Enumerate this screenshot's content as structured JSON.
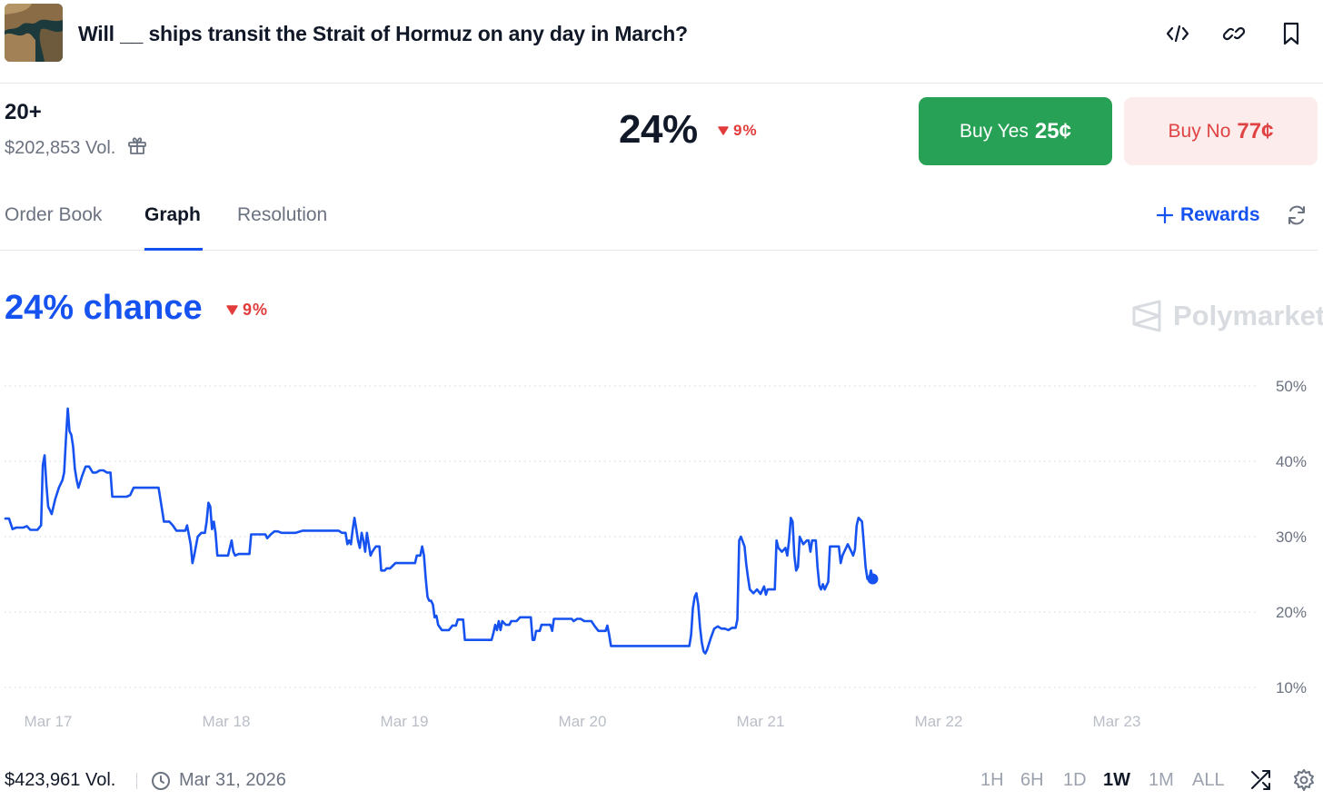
{
  "header": {
    "title": "Will __ ships transit the Strait of Hormuz on any day in March?"
  },
  "market": {
    "outcome": "20+",
    "volume": "$202,853 Vol.",
    "probability": "24%",
    "change": "9%",
    "buy_yes_label": "Buy Yes",
    "buy_yes_price": "25¢",
    "buy_no_label": "Buy No",
    "buy_no_price": "77¢"
  },
  "tabs": [
    "Order Book",
    "Graph",
    "Resolution"
  ],
  "active_tab": "Graph",
  "rewards_label": "Rewards",
  "chart_header": {
    "chance": "24% chance",
    "change": "9%",
    "brand": "Polymarket"
  },
  "chart_data": {
    "type": "line",
    "xlabel": "",
    "ylabel": "",
    "x_ticks": [
      "Mar 17",
      "Mar 18",
      "Mar 19",
      "Mar 20",
      "Mar 21",
      "Mar 22",
      "Mar 23"
    ],
    "y_ticks": [
      "10%",
      "20%",
      "30%",
      "40%",
      "50%"
    ],
    "ylim": [
      10,
      50
    ],
    "xlim": [
      16.76,
      23.89
    ],
    "grid": true,
    "legend": "none",
    "series": [
      {
        "color": "#1652f0",
        "points": [
          [
            16.76,
            32.4
          ],
          [
            16.78,
            32.4
          ],
          [
            16.8,
            31.0
          ],
          [
            16.82,
            31.2
          ],
          [
            16.86,
            31.2
          ],
          [
            16.88,
            31.4
          ],
          [
            16.9,
            30.9
          ],
          [
            16.92,
            30.9
          ],
          [
            16.94,
            30.9
          ],
          [
            16.96,
            31.5
          ],
          [
            16.97,
            39.5
          ],
          [
            16.98,
            40.8
          ],
          [
            16.99,
            37.0
          ],
          [
            17.0,
            34.0
          ],
          [
            17.02,
            33.0
          ],
          [
            17.04,
            35.0
          ],
          [
            17.06,
            36.5
          ],
          [
            17.08,
            37.5
          ],
          [
            17.09,
            38.5
          ],
          [
            17.1,
            43.0
          ],
          [
            17.11,
            47.0
          ],
          [
            17.12,
            44.0
          ],
          [
            17.13,
            43.5
          ],
          [
            17.14,
            42.0
          ],
          [
            17.15,
            39.0
          ],
          [
            17.16,
            37.5
          ],
          [
            17.17,
            36.5
          ],
          [
            17.19,
            38.0
          ],
          [
            17.21,
            39.3
          ],
          [
            17.23,
            39.3
          ],
          [
            17.25,
            38.5
          ],
          [
            17.27,
            38.5
          ],
          [
            17.29,
            38.8
          ],
          [
            17.31,
            38.8
          ],
          [
            17.33,
            38.5
          ],
          [
            17.35,
            38.5
          ],
          [
            17.36,
            35.3
          ],
          [
            17.38,
            35.3
          ],
          [
            17.44,
            35.3
          ],
          [
            17.46,
            35.5
          ],
          [
            17.48,
            36.5
          ],
          [
            17.5,
            36.5
          ],
          [
            17.55,
            36.5
          ],
          [
            17.62,
            36.5
          ],
          [
            17.63,
            35.0
          ],
          [
            17.65,
            32.0
          ],
          [
            17.68,
            32.0
          ],
          [
            17.7,
            31.5
          ],
          [
            17.72,
            30.8
          ],
          [
            17.75,
            30.8
          ],
          [
            17.77,
            30.8
          ],
          [
            17.78,
            31.5
          ],
          [
            17.8,
            29.0
          ],
          [
            17.81,
            26.5
          ],
          [
            17.82,
            27.5
          ],
          [
            17.84,
            30.0
          ],
          [
            17.86,
            30.5
          ],
          [
            17.88,
            30.5
          ],
          [
            17.89,
            32.0
          ],
          [
            17.9,
            34.5
          ],
          [
            17.91,
            34.0
          ],
          [
            17.92,
            31.0
          ],
          [
            17.93,
            32.0
          ],
          [
            17.94,
            30.5
          ],
          [
            17.95,
            27.5
          ],
          [
            17.97,
            27.5
          ],
          [
            17.99,
            27.5
          ],
          [
            18.01,
            27.5
          ],
          [
            18.02,
            28.5
          ],
          [
            18.03,
            29.5
          ],
          [
            18.04,
            28.0
          ],
          [
            18.05,
            27.5
          ],
          [
            18.07,
            27.7
          ],
          [
            18.09,
            27.7
          ],
          [
            18.11,
            27.7
          ],
          [
            18.13,
            27.7
          ],
          [
            18.14,
            30.3
          ],
          [
            18.18,
            30.3
          ],
          [
            18.22,
            30.3
          ],
          [
            18.23,
            29.8
          ],
          [
            18.25,
            30.3
          ],
          [
            18.27,
            30.7
          ],
          [
            18.29,
            30.7
          ],
          [
            18.31,
            30.5
          ],
          [
            18.35,
            30.5
          ],
          [
            18.39,
            30.5
          ],
          [
            18.43,
            30.8
          ],
          [
            18.48,
            30.8
          ],
          [
            18.53,
            30.8
          ],
          [
            18.58,
            30.8
          ],
          [
            18.63,
            30.8
          ],
          [
            18.65,
            30.5
          ],
          [
            18.67,
            30.5
          ],
          [
            18.68,
            29.0
          ],
          [
            18.69,
            29.5
          ],
          [
            18.7,
            29.0
          ],
          [
            18.71,
            31.0
          ],
          [
            18.72,
            32.5
          ],
          [
            18.73,
            31.0
          ],
          [
            18.74,
            29.5
          ],
          [
            18.75,
            28.5
          ],
          [
            18.76,
            30.5
          ],
          [
            18.77,
            29.5
          ],
          [
            18.78,
            28.0
          ],
          [
            18.79,
            30.5
          ],
          [
            18.8,
            29.0
          ],
          [
            18.81,
            27.5
          ],
          [
            18.82,
            28.0
          ],
          [
            18.84,
            28.7
          ],
          [
            18.86,
            28.7
          ],
          [
            18.87,
            25.5
          ],
          [
            18.89,
            25.5
          ],
          [
            18.9,
            25.8
          ],
          [
            18.92,
            25.8
          ],
          [
            18.95,
            26.5
          ],
          [
            18.98,
            26.5
          ],
          [
            19.01,
            26.5
          ],
          [
            19.04,
            26.5
          ],
          [
            19.06,
            26.5
          ],
          [
            19.07,
            27.5
          ],
          [
            19.08,
            27.5
          ],
          [
            19.09,
            27.5
          ],
          [
            19.1,
            28.7
          ],
          [
            19.11,
            27.5
          ],
          [
            19.12,
            24.5
          ],
          [
            19.13,
            22.0
          ],
          [
            19.14,
            21.5
          ],
          [
            19.15,
            21.5
          ],
          [
            19.16,
            21.0
          ],
          [
            19.17,
            19.3
          ],
          [
            19.18,
            19.5
          ],
          [
            19.19,
            18.3
          ],
          [
            19.21,
            17.6
          ],
          [
            19.25,
            17.6
          ],
          [
            19.27,
            18.2
          ],
          [
            19.29,
            18.2
          ],
          [
            19.3,
            19.0
          ],
          [
            19.33,
            19.0
          ],
          [
            19.34,
            16.3
          ],
          [
            19.38,
            16.3
          ],
          [
            19.42,
            16.3
          ],
          [
            19.46,
            16.3
          ],
          [
            19.49,
            16.3
          ],
          [
            19.5,
            17.2
          ],
          [
            19.51,
            18.3
          ],
          [
            19.52,
            17.6
          ],
          [
            19.53,
            18.8
          ],
          [
            19.54,
            17.6
          ],
          [
            19.55,
            18.8
          ],
          [
            19.57,
            18.3
          ],
          [
            19.59,
            18.3
          ],
          [
            19.6,
            18.8
          ],
          [
            19.63,
            18.8
          ],
          [
            19.65,
            19.3
          ],
          [
            19.69,
            19.3
          ],
          [
            19.71,
            19.3
          ],
          [
            19.72,
            16.3
          ],
          [
            19.73,
            16.3
          ],
          [
            19.74,
            17.5
          ],
          [
            19.76,
            17.5
          ],
          [
            19.77,
            18.3
          ],
          [
            19.8,
            18.3
          ],
          [
            19.82,
            18.3
          ],
          [
            19.83,
            17.5
          ],
          [
            19.84,
            19.1
          ],
          [
            19.87,
            19.1
          ],
          [
            19.9,
            19.1
          ],
          [
            19.94,
            19.1
          ],
          [
            19.95,
            18.8
          ],
          [
            19.97,
            19.1
          ],
          [
            19.99,
            19.1
          ],
          [
            20.01,
            18.8
          ],
          [
            20.05,
            18.8
          ],
          [
            20.07,
            18.1
          ],
          [
            20.09,
            17.5
          ],
          [
            20.13,
            17.5
          ],
          [
            20.14,
            18.2
          ],
          [
            20.15,
            17.0
          ],
          [
            20.16,
            15.5
          ],
          [
            20.2,
            15.5
          ],
          [
            20.4,
            15.5
          ],
          [
            20.55,
            15.5
          ],
          [
            20.6,
            15.5
          ],
          [
            20.61,
            17.0
          ],
          [
            20.62,
            20.5
          ],
          [
            20.63,
            22.0
          ],
          [
            20.64,
            22.5
          ],
          [
            20.65,
            21.0
          ],
          [
            20.66,
            18.0
          ],
          [
            20.67,
            16.0
          ],
          [
            20.68,
            14.8
          ],
          [
            20.69,
            14.5
          ],
          [
            20.7,
            15.0
          ],
          [
            20.72,
            16.5
          ],
          [
            20.74,
            17.8
          ],
          [
            20.76,
            18.1
          ],
          [
            20.78,
            17.8
          ],
          [
            20.8,
            17.8
          ],
          [
            20.82,
            17.6
          ],
          [
            20.84,
            17.9
          ],
          [
            20.86,
            17.9
          ],
          [
            20.87,
            19.0
          ],
          [
            20.88,
            29.5
          ],
          [
            20.89,
            30.0
          ],
          [
            20.91,
            28.7
          ],
          [
            20.92,
            26.3
          ],
          [
            20.93,
            24.5
          ],
          [
            20.94,
            23.0
          ],
          [
            20.96,
            22.5
          ],
          [
            20.98,
            23.0
          ],
          [
            21.0,
            22.4
          ],
          [
            21.02,
            23.4
          ],
          [
            21.03,
            22.3
          ],
          [
            21.04,
            23.0
          ],
          [
            21.06,
            23.0
          ],
          [
            21.08,
            23.0
          ],
          [
            21.09,
            29.5
          ],
          [
            21.1,
            28.5
          ],
          [
            21.12,
            28.0
          ],
          [
            21.14,
            28.5
          ],
          [
            21.15,
            27.5
          ],
          [
            21.16,
            29.5
          ],
          [
            21.17,
            32.5
          ],
          [
            21.18,
            32.0
          ],
          [
            21.19,
            27.5
          ],
          [
            21.2,
            25.5
          ],
          [
            21.21,
            26.0
          ],
          [
            21.22,
            30.0
          ],
          [
            21.24,
            29.0
          ],
          [
            21.26,
            29.5
          ],
          [
            21.27,
            29.5
          ],
          [
            21.28,
            28.0
          ],
          [
            21.29,
            29.5
          ],
          [
            21.31,
            29.5
          ],
          [
            21.32,
            26.0
          ],
          [
            21.33,
            23.5
          ],
          [
            21.34,
            23.0
          ],
          [
            21.35,
            23.7
          ],
          [
            21.36,
            23.0
          ],
          [
            21.38,
            24.0
          ],
          [
            21.39,
            28.7
          ],
          [
            21.41,
            28.7
          ],
          [
            21.44,
            28.7
          ],
          [
            21.45,
            26.5
          ],
          [
            21.46,
            27.5
          ],
          [
            21.47,
            28.0
          ],
          [
            21.49,
            29.0
          ],
          [
            21.51,
            28.0
          ],
          [
            21.52,
            27.5
          ],
          [
            21.53,
            28.3
          ],
          [
            21.54,
            31.5
          ],
          [
            21.55,
            32.5
          ],
          [
            21.57,
            32.0
          ],
          [
            21.58,
            29.0
          ],
          [
            21.59,
            26.0
          ],
          [
            21.6,
            24.4
          ],
          [
            21.61,
            24.4
          ],
          [
            21.62,
            25.5
          ],
          [
            21.63,
            24.4
          ]
        ]
      }
    ]
  },
  "footer": {
    "volume": "$423,961 Vol.",
    "end_date": "Mar 31, 2026",
    "ranges": [
      "1H",
      "6H",
      "1D",
      "1W",
      "1M",
      "ALL"
    ],
    "active_range": "1W"
  },
  "colors": {
    "accent": "#1652f0",
    "yes": "#27a155",
    "no": "#e04343",
    "no_bg": "#fdecec",
    "down": "#e23b3b"
  },
  "icons": [
    "embed-icon",
    "link-icon",
    "bookmark-icon",
    "gift-icon",
    "plus-icon",
    "refresh-icon",
    "clock-icon",
    "shuffle-icon",
    "settings-icon",
    "polymarket-logo-icon",
    "triangle-down-icon"
  ]
}
